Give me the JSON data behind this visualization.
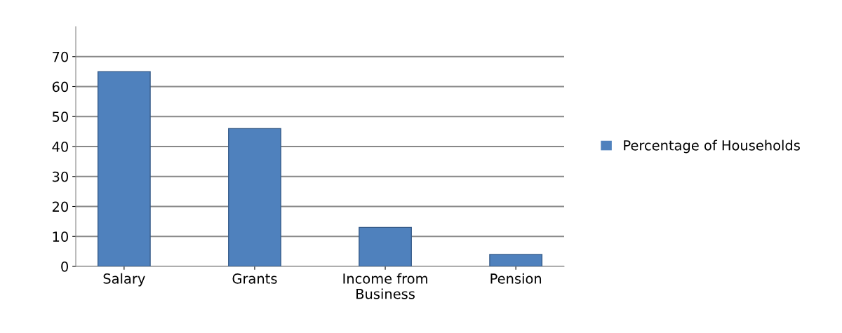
{
  "chart_data": {
    "type": "bar",
    "categories": [
      "Salary",
      "Grants",
      "Income from\nBusiness",
      "Pension"
    ],
    "series": [
      {
        "name": "Percentage of Households",
        "color": "#4f81bd",
        "values": [
          65,
          46,
          13,
          4
        ]
      }
    ],
    "ylim": [
      0,
      80
    ],
    "yticks": [
      0,
      10,
      20,
      30,
      40,
      50,
      60,
      70
    ],
    "grid": "y",
    "legend": "right"
  }
}
